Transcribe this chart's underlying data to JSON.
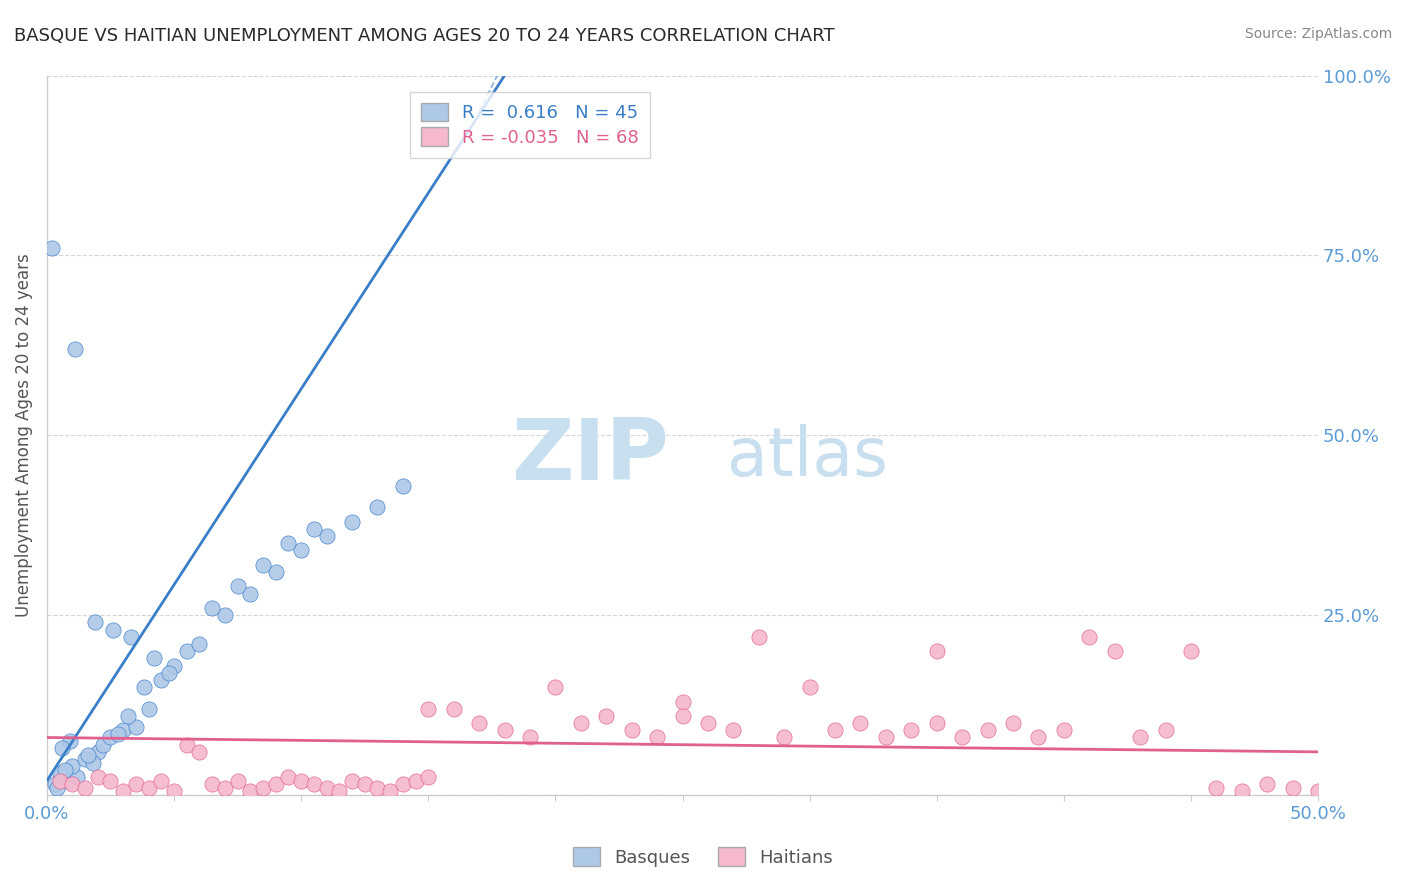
{
  "title": "BASQUE VS HAITIAN UNEMPLOYMENT AMONG AGES 20 TO 24 YEARS CORRELATION CHART",
  "source_text": "Source: ZipAtlas.com",
  "ylabel": "Unemployment Among Ages 20 to 24 years",
  "xlim": [
    0.0,
    0.5
  ],
  "ylim": [
    0.0,
    1.0
  ],
  "basque_color": "#aec8e8",
  "haitian_color": "#f5b8cc",
  "basque_line_color": "#3a7ec8",
  "haitian_line_color": "#e06090",
  "basque_R": 0.616,
  "basque_N": 45,
  "haitian_R": -0.035,
  "haitian_N": 68,
  "legend_label_basque": "Basques",
  "legend_label_haitian": "Haitians",
  "title_color": "#2a2a2a",
  "source_color": "#888888",
  "watermark_zip": "ZIP",
  "watermark_atlas": "atlas",
  "watermark_color": "#c8dff0",
  "grid_color": "#cccccc",
  "tick_color": "#5b9bd5",
  "ylabel_color": "#555555",
  "basque_x": [
    0.005,
    0.008,
    0.012,
    0.003,
    0.01,
    0.015,
    0.02,
    0.007,
    0.004,
    0.018,
    0.022,
    0.025,
    0.03,
    0.035,
    0.04,
    0.028,
    0.016,
    0.009,
    0.006,
    0.032,
    0.038,
    0.045,
    0.05,
    0.055,
    0.06,
    0.07,
    0.08,
    0.09,
    0.1,
    0.11,
    0.12,
    0.13,
    0.14,
    0.002,
    0.011,
    0.019,
    0.026,
    0.033,
    0.042,
    0.048,
    0.065,
    0.075,
    0.085,
    0.095,
    0.105
  ],
  "basque_y": [
    0.03,
    0.02,
    0.025,
    0.015,
    0.04,
    0.05,
    0.06,
    0.035,
    0.01,
    0.045,
    0.07,
    0.08,
    0.09,
    0.095,
    0.12,
    0.085,
    0.055,
    0.075,
    0.065,
    0.11,
    0.15,
    0.16,
    0.18,
    0.2,
    0.21,
    0.25,
    0.28,
    0.31,
    0.34,
    0.36,
    0.38,
    0.4,
    0.43,
    0.76,
    0.62,
    0.24,
    0.23,
    0.22,
    0.19,
    0.17,
    0.26,
    0.29,
    0.32,
    0.35,
    0.37
  ],
  "haitian_x": [
    0.005,
    0.01,
    0.015,
    0.02,
    0.025,
    0.03,
    0.035,
    0.04,
    0.045,
    0.05,
    0.055,
    0.06,
    0.065,
    0.07,
    0.075,
    0.08,
    0.085,
    0.09,
    0.095,
    0.1,
    0.105,
    0.11,
    0.115,
    0.12,
    0.125,
    0.13,
    0.135,
    0.14,
    0.145,
    0.15,
    0.16,
    0.17,
    0.18,
    0.19,
    0.2,
    0.21,
    0.22,
    0.23,
    0.24,
    0.25,
    0.26,
    0.27,
    0.28,
    0.29,
    0.3,
    0.31,
    0.32,
    0.33,
    0.34,
    0.35,
    0.36,
    0.37,
    0.38,
    0.39,
    0.4,
    0.41,
    0.42,
    0.43,
    0.44,
    0.45,
    0.46,
    0.47,
    0.48,
    0.49,
    0.5,
    0.35,
    0.15,
    0.25
  ],
  "haitian_y": [
    0.02,
    0.015,
    0.01,
    0.025,
    0.02,
    0.005,
    0.015,
    0.01,
    0.02,
    0.005,
    0.07,
    0.06,
    0.015,
    0.01,
    0.02,
    0.005,
    0.01,
    0.015,
    0.025,
    0.02,
    0.015,
    0.01,
    0.005,
    0.02,
    0.015,
    0.01,
    0.005,
    0.015,
    0.02,
    0.025,
    0.12,
    0.1,
    0.09,
    0.08,
    0.15,
    0.1,
    0.11,
    0.09,
    0.08,
    0.13,
    0.1,
    0.09,
    0.22,
    0.08,
    0.15,
    0.09,
    0.1,
    0.08,
    0.09,
    0.1,
    0.08,
    0.09,
    0.1,
    0.08,
    0.09,
    0.22,
    0.2,
    0.08,
    0.09,
    0.2,
    0.01,
    0.005,
    0.015,
    0.01,
    0.005,
    0.2,
    0.12,
    0.11
  ],
  "basque_trendline_x": [
    0.0,
    0.18
  ],
  "basque_trendline_y": [
    0.02,
    1.0
  ],
  "haitian_trendline_x": [
    0.0,
    0.5
  ],
  "haitian_trendline_y": [
    0.08,
    0.06
  ]
}
